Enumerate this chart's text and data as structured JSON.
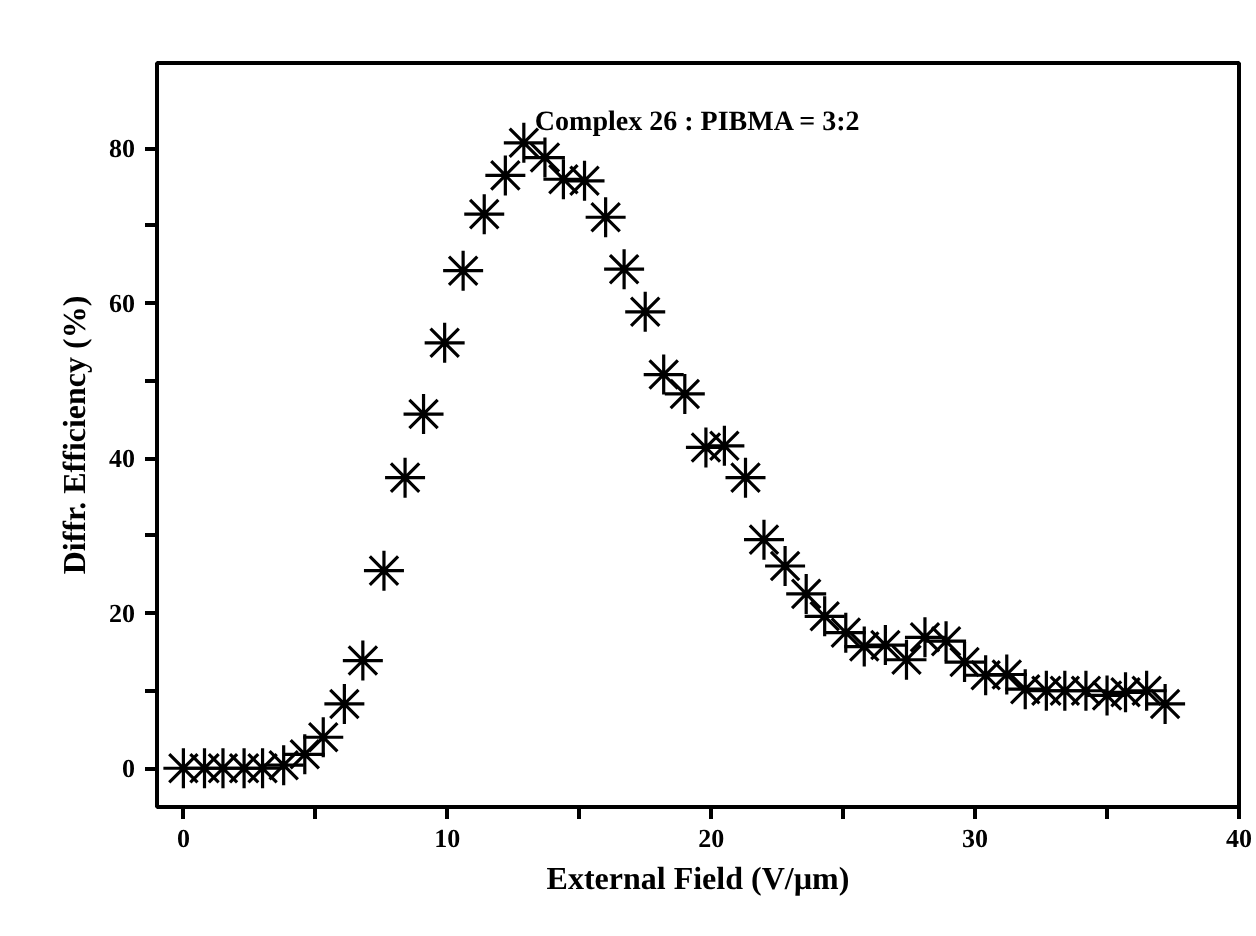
{
  "chart_data": {
    "type": "scatter",
    "title": "Complex 26 : PIBMA = 3:2",
    "xlabel": "External Field (V/µm)",
    "ylabel": "Diffr. Efficiency (%)",
    "x": [
      0.0,
      0.8,
      1.5,
      2.3,
      3.0,
      3.8,
      4.6,
      5.3,
      6.1,
      6.8,
      7.6,
      8.4,
      9.1,
      9.9,
      10.6,
      11.4,
      12.2,
      12.9,
      13.7,
      14.4,
      15.2,
      16.0,
      16.7,
      17.5,
      18.2,
      19.0,
      19.8,
      20.5,
      21.3,
      22.0,
      22.8,
      23.6,
      24.3,
      25.1,
      25.8,
      26.6,
      27.4,
      28.1,
      28.9,
      29.6,
      30.4,
      31.2,
      31.9,
      32.7,
      33.4,
      34.2,
      35.0,
      35.7,
      36.5,
      37.2
    ],
    "series": [
      {
        "color": "#000000",
        "values": [
          0,
          0,
          0,
          0,
          0,
          0.4,
          1.8,
          4.0,
          8.3,
          13.9,
          25.5,
          37.5,
          45.7,
          54.9,
          64.2,
          71.5,
          76.5,
          80.7,
          78.8,
          76.0,
          75.8,
          71.1,
          64.4,
          58.9,
          50.8,
          48.3,
          41.4,
          41.6,
          37.5,
          29.5,
          26.1,
          22.5,
          19.6,
          17.5,
          15.7,
          15.9,
          14.0,
          16.9,
          16.4,
          13.7,
          12.0,
          12.1,
          10.2,
          10.0,
          10.0,
          10.0,
          9.4,
          9.8,
          10.0,
          8.3
        ]
      }
    ],
    "marker": "cross",
    "grid": false,
    "xlim": [
      -1,
      40
    ],
    "ylim": [
      -5,
      91
    ],
    "xticks": [
      0,
      {
        "value": 5,
        "label": null
      },
      10,
      {
        "value": 15,
        "label": null
      },
      20,
      {
        "value": 25,
        "label": null
      },
      30,
      {
        "value": 35,
        "label": null
      },
      40
    ],
    "yticks": [
      0,
      {
        "value": 10,
        "label": null
      },
      20,
      {
        "value": 30,
        "label": null
      },
      40,
      {
        "value": 50,
        "label": null
      },
      60,
      {
        "value": 70,
        "label": null
      },
      80
    ]
  }
}
